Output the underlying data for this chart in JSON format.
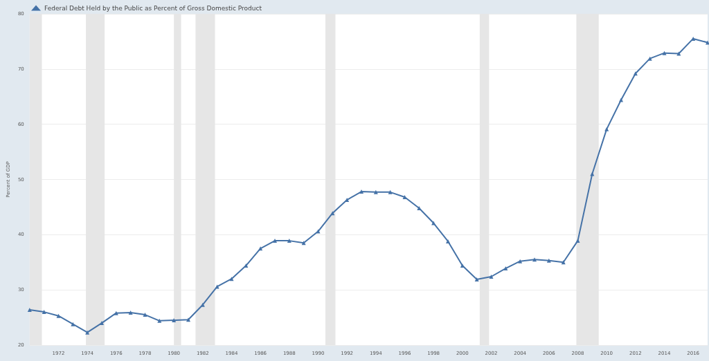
{
  "chart_data": {
    "type": "line",
    "ylabel": "Percent of GDP",
    "x": [
      1970,
      1971,
      1972,
      1973,
      1974,
      1975,
      1976,
      1977,
      1978,
      1979,
      1980,
      1981,
      1982,
      1983,
      1984,
      1985,
      1986,
      1987,
      1988,
      1989,
      1990,
      1991,
      1992,
      1993,
      1994,
      1995,
      1996,
      1997,
      1998,
      1999,
      2000,
      2001,
      2002,
      2003,
      2004,
      2005,
      2006,
      2007,
      2008,
      2009,
      2010,
      2011,
      2012,
      2013,
      2014,
      2015,
      2016,
      2017
    ],
    "series": [
      {
        "name": "Federal Debt Held by the Public as Percent of Gross Domestic Product",
        "color": "#4572a7",
        "values": [
          26.4,
          26.0,
          25.3,
          23.8,
          22.3,
          24.0,
          25.8,
          25.9,
          25.5,
          24.4,
          24.5,
          24.6,
          27.3,
          30.6,
          32.0,
          34.4,
          37.5,
          38.9,
          38.9,
          38.5,
          40.6,
          43.9,
          46.3,
          47.8,
          47.7,
          47.7,
          46.8,
          44.8,
          42.1,
          38.8,
          34.4,
          31.9,
          32.4,
          33.9,
          35.2,
          35.5,
          35.3,
          35.0,
          38.9,
          51.0,
          59.1,
          64.4,
          69.2,
          71.9,
          72.9,
          72.8,
          75.5,
          74.8
        ]
      }
    ],
    "xlim": [
      1970,
      2017
    ],
    "xticks": [
      1972,
      1974,
      1976,
      1978,
      1980,
      1982,
      1984,
      1986,
      1988,
      1990,
      1992,
      1994,
      1996,
      1998,
      2000,
      2002,
      2004,
      2006,
      2008,
      2010,
      2012,
      2014,
      2016
    ],
    "ylim": [
      20,
      80
    ],
    "yticks": [
      20,
      30,
      40,
      50,
      60,
      70,
      80
    ],
    "bands": [
      {
        "axis": "x",
        "from": 1970,
        "to": 1970.85,
        "color": "#e6e6e6"
      },
      {
        "axis": "x",
        "from": 1973.9,
        "to": 1975.2,
        "color": "#e6e6e6"
      },
      {
        "axis": "x",
        "from": 1980.0,
        "to": 1980.5,
        "color": "#e6e6e6"
      },
      {
        "axis": "x",
        "from": 1981.5,
        "to": 1982.85,
        "color": "#e6e6e6"
      },
      {
        "axis": "x",
        "from": 1990.5,
        "to": 1991.2,
        "color": "#e6e6e6"
      },
      {
        "axis": "x",
        "from": 2001.2,
        "to": 2001.85,
        "color": "#e6e6e6"
      },
      {
        "axis": "x",
        "from": 2007.9,
        "to": 2009.45,
        "color": "#e6e6e6"
      }
    ],
    "grid": "y",
    "legend": "top left",
    "marker": "triangle",
    "line_style": "solid"
  }
}
